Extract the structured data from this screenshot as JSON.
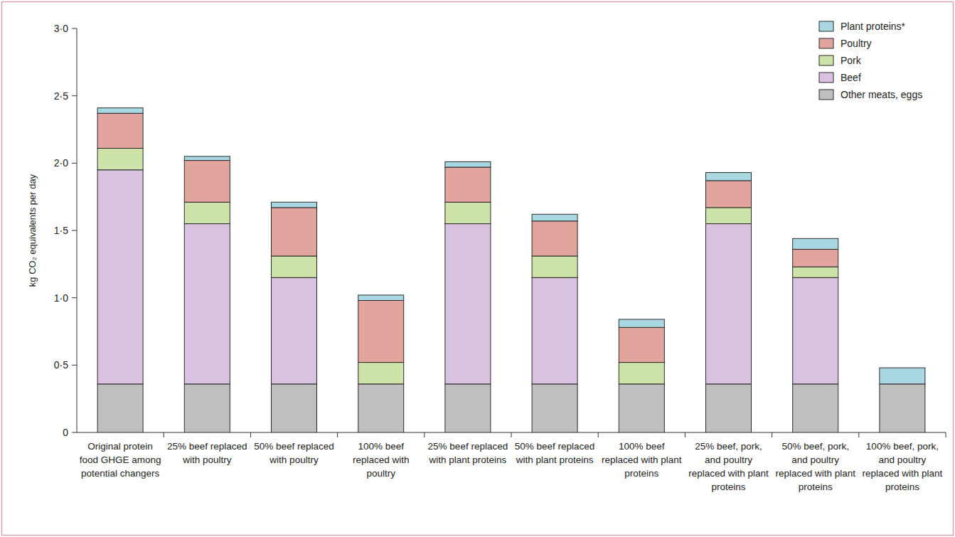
{
  "chart_data": {
    "type": "bar",
    "stacked": true,
    "grid": false,
    "legend": "upper right",
    "ylabel": "kg CO₂ equivalents per day",
    "categories": [
      "Original protein food GHGE among potential changers",
      "25% beef replaced with poultry",
      "50% beef replaced with poultry",
      "100% beef replaced with poultry",
      "25% beef replaced with plant proteins",
      "50% beef replaced with plant proteins",
      "100% beef replaced with plant proteins",
      "25% beef, pork, and poultry replaced with plant proteins",
      "50% beef, pork, and poultry replaced with plant proteins",
      "100% beef, pork, and poultry replaced with plant proteins"
    ],
    "series": [
      {
        "name": "Other meats, eggs",
        "color": "#bfbfbf",
        "values": [
          0.36,
          0.36,
          0.36,
          0.36,
          0.36,
          0.36,
          0.36,
          0.36,
          0.36,
          0.36
        ]
      },
      {
        "name": "Beef",
        "color": "#d9c2e0",
        "values": [
          1.59,
          1.19,
          0.79,
          0,
          1.19,
          0.79,
          0,
          1.19,
          0.79,
          0
        ]
      },
      {
        "name": "Pork",
        "color": "#cde3a9",
        "values": [
          0.16,
          0.16,
          0.16,
          0.16,
          0.16,
          0.16,
          0.16,
          0.12,
          0.08,
          0
        ]
      },
      {
        "name": "Poultry",
        "color": "#e2a59d",
        "values": [
          0.26,
          0.31,
          0.36,
          0.46,
          0.26,
          0.26,
          0.26,
          0.2,
          0.13,
          0
        ]
      },
      {
        "name": "Plant proteins*",
        "color": "#aad8e2",
        "values": [
          0.04,
          0.03,
          0.04,
          0.04,
          0.04,
          0.05,
          0.06,
          0.06,
          0.08,
          0.12
        ]
      }
    ],
    "ylim": [
      0,
      3
    ],
    "yticks": [
      0,
      {
        "value": 0.5,
        "label": "0·5"
      },
      {
        "value": 1,
        "label": "1·0"
      },
      {
        "value": 1.5,
        "label": "1·5"
      },
      {
        "value": 2,
        "label": "2·0"
      },
      {
        "value": 2.5,
        "label": "2·5"
      },
      {
        "value": 3,
        "label": "3·0"
      }
    ]
  }
}
